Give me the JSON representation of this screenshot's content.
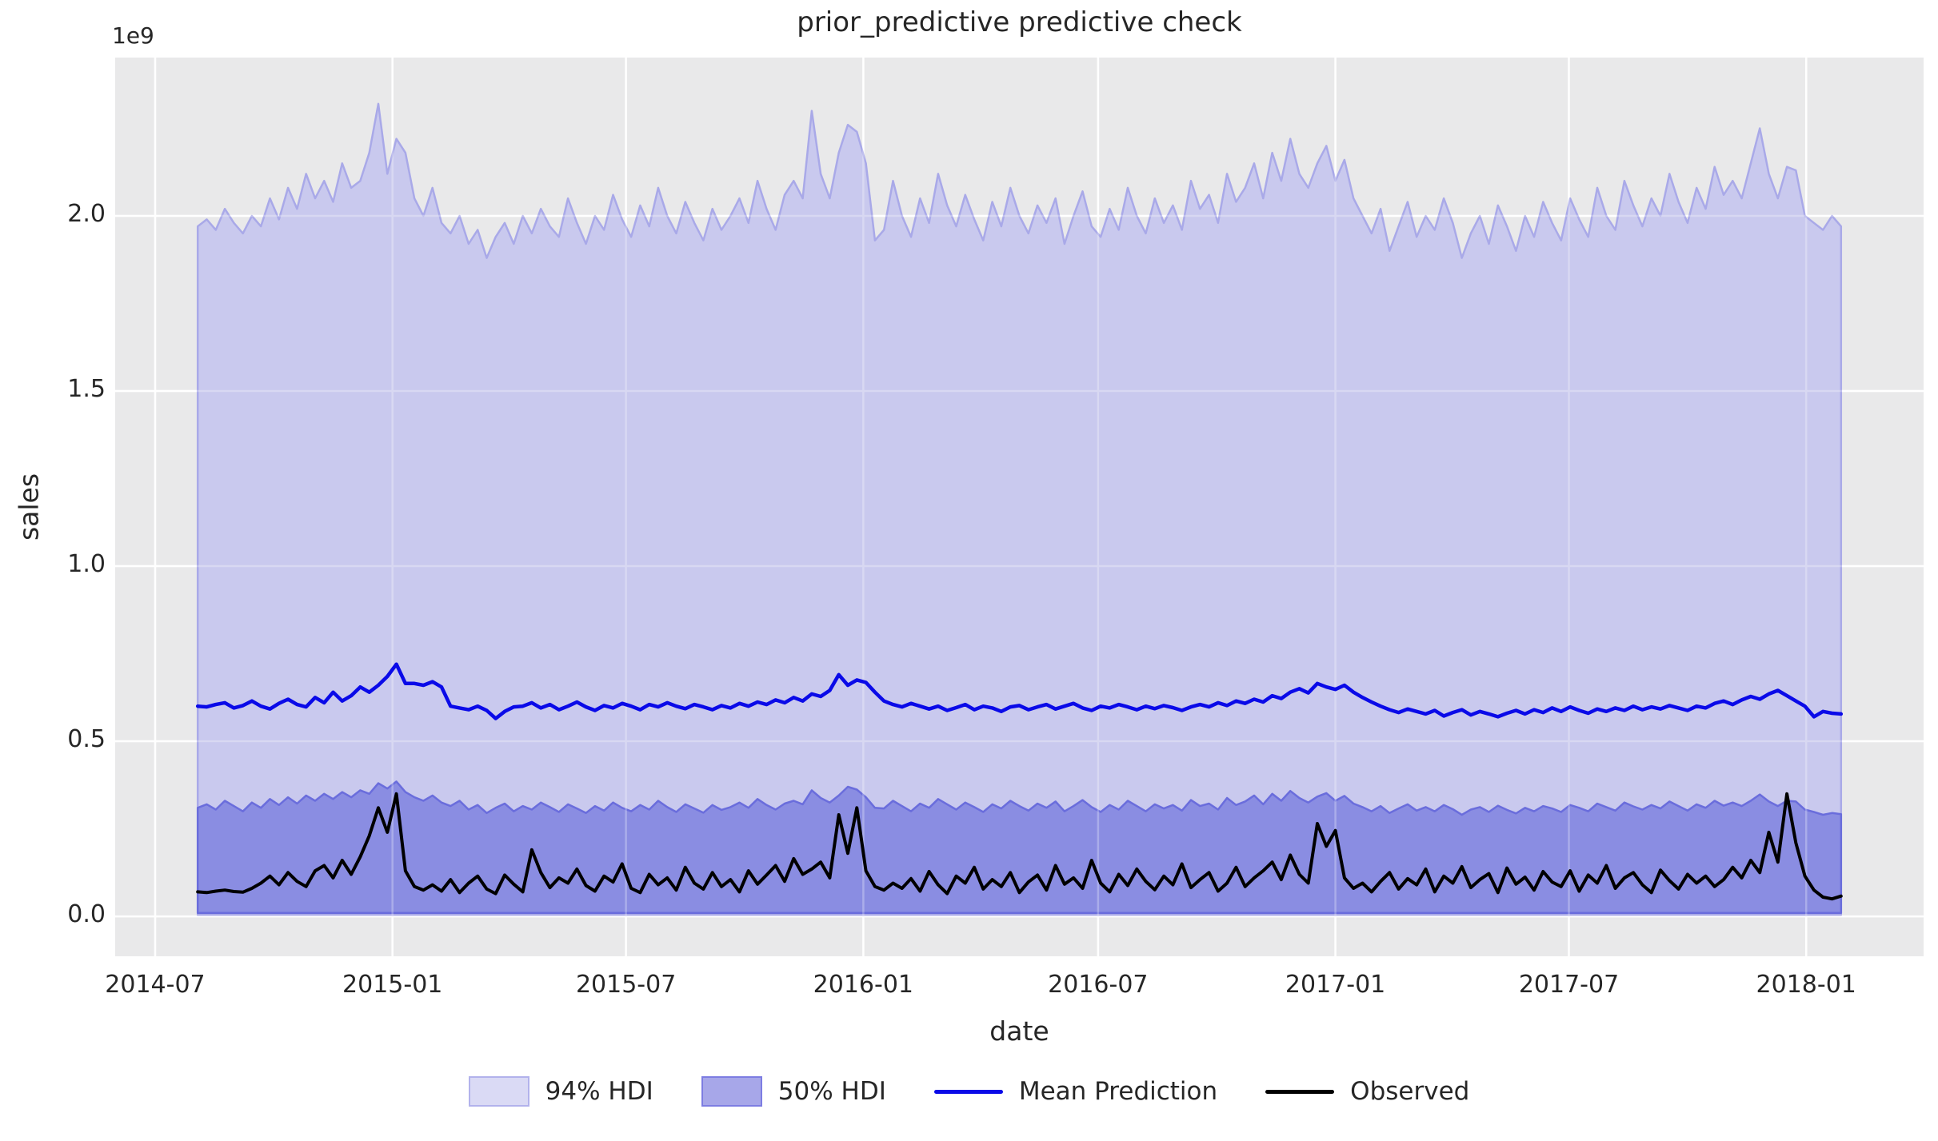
{
  "title": "prior_predictive predictive check",
  "axes": {
    "xlabel": "date",
    "ylabel": "sales",
    "offset_text": "1e9"
  },
  "legend": {
    "items": [
      {
        "label": "94% HDI",
        "type": "patch",
        "fill": "#dadaf5",
        "border": "#b2b2ec"
      },
      {
        "label": "50% HDI",
        "type": "patch",
        "fill": "#a7a7e9",
        "border": "#7d7de2"
      },
      {
        "label": "Mean Prediction",
        "type": "line",
        "color": "#0a0ae8"
      },
      {
        "label": "Observed",
        "type": "line",
        "color": "#000000"
      }
    ]
  },
  "chart_data": {
    "type": "area",
    "title": "prior_predictive predictive check",
    "xlabel": "date",
    "ylabel": "sales",
    "y_offset_text": "1e9",
    "y_units": "values are in units of 1e9 (billions)",
    "grid": true,
    "plot_bg": "#e9e9ea",
    "grid_color": "#ffffff",
    "legend_position": "lower center outside",
    "x": {
      "start_date": "2014-08-03",
      "freq_days": 7,
      "n": 183
    },
    "xlim": [
      "2014-05-31",
      "2018-04-02"
    ],
    "ylim": [
      -0.114,
      2.452
    ],
    "x_tick_dates": [
      "2014-07-01",
      "2015-01-01",
      "2015-07-01",
      "2016-01-01",
      "2016-07-01",
      "2017-01-01",
      "2017-07-01",
      "2018-01-01"
    ],
    "x_tick_labels": [
      "2014-07",
      "2015-01",
      "2015-07",
      "2016-01",
      "2016-07",
      "2017-01",
      "2017-07",
      "2018-01"
    ],
    "y_ticks": [
      0.0,
      0.5,
      1.0,
      1.5,
      2.0
    ],
    "y_tick_labels": [
      "0.0",
      "0.5",
      "1.0",
      "1.5",
      "2.0"
    ],
    "series": [
      {
        "name": "94% HDI",
        "kind": "band",
        "fill": "#c9c9ee",
        "edge": "#a9a9e8",
        "lower_flat": 0.004,
        "upper": [
          1.97,
          1.99,
          1.96,
          2.02,
          1.98,
          1.95,
          2.0,
          1.97,
          2.05,
          1.99,
          2.08,
          2.02,
          2.12,
          2.05,
          2.1,
          2.04,
          2.15,
          2.08,
          2.1,
          2.18,
          2.32,
          2.12,
          2.22,
          2.18,
          2.05,
          2.0,
          2.08,
          1.98,
          1.95,
          2.0,
          1.92,
          1.96,
          1.88,
          1.94,
          1.98,
          1.92,
          2.0,
          1.95,
          2.02,
          1.97,
          1.94,
          2.05,
          1.98,
          1.92,
          2.0,
          1.96,
          2.06,
          1.99,
          1.94,
          2.03,
          1.97,
          2.08,
          2.0,
          1.95,
          2.04,
          1.98,
          1.93,
          2.02,
          1.96,
          2.0,
          2.05,
          1.98,
          2.1,
          2.02,
          1.96,
          2.06,
          2.1,
          2.05,
          2.3,
          2.12,
          2.05,
          2.18,
          2.26,
          2.24,
          2.15,
          1.93,
          1.96,
          2.1,
          2.0,
          1.94,
          2.05,
          1.98,
          2.12,
          2.03,
          1.97,
          2.06,
          1.99,
          1.93,
          2.04,
          1.97,
          2.08,
          2.0,
          1.95,
          2.03,
          1.98,
          2.05,
          1.92,
          2.0,
          2.07,
          1.97,
          1.94,
          2.02,
          1.96,
          2.08,
          2.0,
          1.95,
          2.05,
          1.98,
          2.03,
          1.96,
          2.1,
          2.02,
          2.06,
          1.98,
          2.12,
          2.04,
          2.08,
          2.15,
          2.05,
          2.18,
          2.1,
          2.22,
          2.12,
          2.08,
          2.15,
          2.2,
          2.1,
          2.16,
          2.05,
          2.0,
          1.95,
          2.02,
          1.9,
          1.97,
          2.04,
          1.94,
          2.0,
          1.96,
          2.05,
          1.98,
          1.88,
          1.95,
          2.0,
          1.92,
          2.03,
          1.97,
          1.9,
          2.0,
          1.94,
          2.04,
          1.98,
          1.93,
          2.05,
          1.99,
          1.94,
          2.08,
          2.0,
          1.96,
          2.1,
          2.03,
          1.97,
          2.05,
          2.0,
          2.12,
          2.04,
          1.98,
          2.08,
          2.02,
          2.14,
          2.06,
          2.1,
          2.05,
          2.15,
          2.25,
          2.12,
          2.05,
          2.14,
          2.13,
          2.0,
          1.98,
          1.96,
          2.0,
          1.97
        ]
      },
      {
        "name": "50% HDI",
        "kind": "band",
        "fill": "#8a8de2",
        "edge": "#6a6ddc",
        "lower_flat": 0.01,
        "upper": [
          0.31,
          0.32,
          0.305,
          0.33,
          0.315,
          0.3,
          0.325,
          0.31,
          0.335,
          0.318,
          0.34,
          0.322,
          0.345,
          0.33,
          0.35,
          0.335,
          0.355,
          0.34,
          0.36,
          0.35,
          0.38,
          0.365,
          0.385,
          0.355,
          0.34,
          0.33,
          0.345,
          0.325,
          0.315,
          0.33,
          0.305,
          0.318,
          0.295,
          0.31,
          0.322,
          0.3,
          0.315,
          0.305,
          0.325,
          0.312,
          0.298,
          0.32,
          0.308,
          0.295,
          0.315,
          0.302,
          0.325,
          0.31,
          0.3,
          0.318,
          0.305,
          0.33,
          0.312,
          0.298,
          0.32,
          0.308,
          0.296,
          0.318,
          0.304,
          0.312,
          0.325,
          0.31,
          0.335,
          0.318,
          0.305,
          0.322,
          0.33,
          0.32,
          0.36,
          0.338,
          0.325,
          0.345,
          0.37,
          0.362,
          0.34,
          0.31,
          0.308,
          0.33,
          0.315,
          0.3,
          0.322,
          0.31,
          0.335,
          0.32,
          0.305,
          0.325,
          0.312,
          0.298,
          0.32,
          0.308,
          0.33,
          0.315,
          0.302,
          0.322,
          0.31,
          0.328,
          0.3,
          0.315,
          0.332,
          0.312,
          0.298,
          0.318,
          0.305,
          0.33,
          0.315,
          0.3,
          0.32,
          0.308,
          0.318,
          0.302,
          0.332,
          0.315,
          0.322,
          0.305,
          0.338,
          0.318,
          0.328,
          0.345,
          0.32,
          0.35,
          0.33,
          0.358,
          0.338,
          0.325,
          0.342,
          0.352,
          0.33,
          0.344,
          0.322,
          0.312,
          0.3,
          0.315,
          0.295,
          0.308,
          0.32,
          0.302,
          0.312,
          0.3,
          0.318,
          0.306,
          0.29,
          0.305,
          0.312,
          0.298,
          0.316,
          0.304,
          0.294,
          0.31,
          0.3,
          0.315,
          0.308,
          0.298,
          0.318,
          0.31,
          0.3,
          0.322,
          0.312,
          0.302,
          0.325,
          0.314,
          0.305,
          0.318,
          0.308,
          0.328,
          0.315,
          0.302,
          0.32,
          0.31,
          0.33,
          0.316,
          0.325,
          0.315,
          0.33,
          0.348,
          0.328,
          0.315,
          0.33,
          0.328,
          0.305,
          0.298,
          0.29,
          0.295,
          0.292
        ]
      },
      {
        "name": "Mean Prediction",
        "kind": "line",
        "color": "#0a0ae8",
        "width": 4.5,
        "values": [
          0.6,
          0.598,
          0.605,
          0.61,
          0.595,
          0.602,
          0.615,
          0.6,
          0.592,
          0.608,
          0.62,
          0.605,
          0.598,
          0.625,
          0.61,
          0.64,
          0.615,
          0.63,
          0.655,
          0.64,
          0.66,
          0.685,
          0.72,
          0.665,
          0.665,
          0.66,
          0.67,
          0.655,
          0.6,
          0.595,
          0.59,
          0.6,
          0.588,
          0.565,
          0.585,
          0.598,
          0.6,
          0.61,
          0.595,
          0.605,
          0.59,
          0.6,
          0.612,
          0.598,
          0.588,
          0.602,
          0.595,
          0.608,
          0.6,
          0.59,
          0.605,
          0.598,
          0.61,
          0.6,
          0.593,
          0.605,
          0.598,
          0.59,
          0.602,
          0.595,
          0.608,
          0.6,
          0.612,
          0.605,
          0.618,
          0.61,
          0.625,
          0.615,
          0.635,
          0.628,
          0.645,
          0.69,
          0.66,
          0.675,
          0.668,
          0.64,
          0.615,
          0.605,
          0.598,
          0.608,
          0.6,
          0.592,
          0.6,
          0.588,
          0.596,
          0.605,
          0.59,
          0.6,
          0.595,
          0.585,
          0.598,
          0.602,
          0.59,
          0.598,
          0.605,
          0.592,
          0.6,
          0.608,
          0.595,
          0.588,
          0.6,
          0.595,
          0.605,
          0.598,
          0.59,
          0.6,
          0.593,
          0.602,
          0.596,
          0.588,
          0.598,
          0.605,
          0.598,
          0.61,
          0.602,
          0.615,
          0.608,
          0.62,
          0.612,
          0.63,
          0.622,
          0.64,
          0.65,
          0.638,
          0.665,
          0.655,
          0.648,
          0.66,
          0.64,
          0.625,
          0.612,
          0.6,
          0.59,
          0.582,
          0.592,
          0.585,
          0.578,
          0.588,
          0.572,
          0.582,
          0.59,
          0.575,
          0.585,
          0.578,
          0.57,
          0.58,
          0.588,
          0.578,
          0.59,
          0.582,
          0.595,
          0.585,
          0.598,
          0.588,
          0.58,
          0.592,
          0.585,
          0.595,
          0.588,
          0.6,
          0.59,
          0.598,
          0.592,
          0.602,
          0.595,
          0.588,
          0.6,
          0.595,
          0.608,
          0.615,
          0.605,
          0.618,
          0.628,
          0.62,
          0.635,
          0.645,
          0.63,
          0.615,
          0.6,
          0.57,
          0.585,
          0.58,
          0.578
        ]
      },
      {
        "name": "Observed",
        "kind": "line",
        "color": "#000000",
        "width": 4,
        "values": [
          0.07,
          0.068,
          0.072,
          0.075,
          0.071,
          0.069,
          0.08,
          0.095,
          0.115,
          0.09,
          0.125,
          0.1,
          0.085,
          0.13,
          0.145,
          0.11,
          0.16,
          0.12,
          0.17,
          0.23,
          0.31,
          0.24,
          0.35,
          0.13,
          0.085,
          0.075,
          0.09,
          0.072,
          0.105,
          0.068,
          0.095,
          0.115,
          0.078,
          0.065,
          0.118,
          0.092,
          0.07,
          0.19,
          0.125,
          0.082,
          0.11,
          0.095,
          0.135,
          0.088,
          0.072,
          0.115,
          0.098,
          0.15,
          0.08,
          0.068,
          0.12,
          0.09,
          0.11,
          0.075,
          0.14,
          0.095,
          0.078,
          0.125,
          0.085,
          0.105,
          0.07,
          0.13,
          0.092,
          0.118,
          0.145,
          0.1,
          0.165,
          0.12,
          0.135,
          0.155,
          0.11,
          0.29,
          0.18,
          0.31,
          0.13,
          0.085,
          0.075,
          0.095,
          0.08,
          0.108,
          0.072,
          0.128,
          0.09,
          0.065,
          0.115,
          0.095,
          0.14,
          0.078,
          0.105,
          0.085,
          0.125,
          0.068,
          0.098,
          0.118,
          0.075,
          0.145,
          0.092,
          0.11,
          0.08,
          0.16,
          0.095,
          0.07,
          0.12,
          0.088,
          0.135,
          0.1,
          0.076,
          0.115,
          0.09,
          0.15,
          0.082,
          0.105,
          0.125,
          0.072,
          0.095,
          0.14,
          0.085,
          0.11,
          0.13,
          0.155,
          0.105,
          0.175,
          0.12,
          0.095,
          0.265,
          0.2,
          0.245,
          0.11,
          0.08,
          0.095,
          0.07,
          0.1,
          0.125,
          0.078,
          0.108,
          0.09,
          0.135,
          0.07,
          0.115,
          0.095,
          0.142,
          0.082,
          0.105,
          0.122,
          0.068,
          0.138,
          0.092,
          0.112,
          0.075,
          0.128,
          0.098,
          0.085,
          0.13,
          0.072,
          0.118,
          0.095,
          0.145,
          0.08,
          0.11,
          0.125,
          0.09,
          0.068,
          0.132,
          0.102,
          0.078,
          0.12,
          0.095,
          0.115,
          0.085,
          0.105,
          0.14,
          0.11,
          0.16,
          0.125,
          0.24,
          0.155,
          0.35,
          0.21,
          0.115,
          0.075,
          0.055,
          0.05,
          0.058
        ]
      }
    ]
  }
}
